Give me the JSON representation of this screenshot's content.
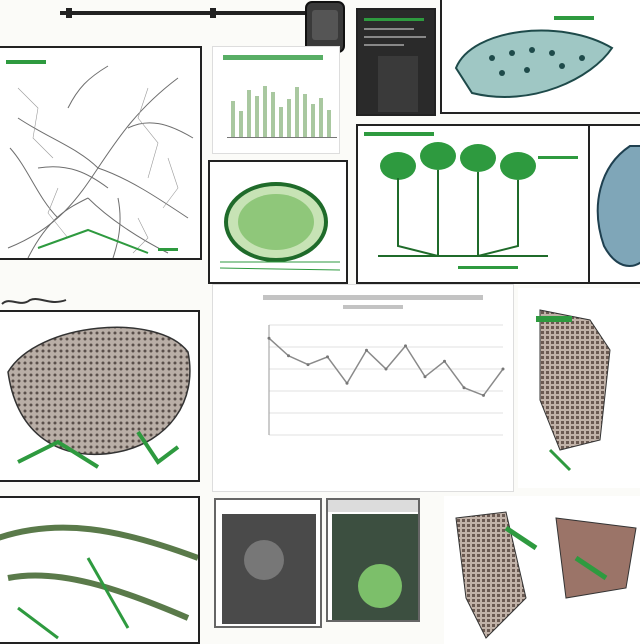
{
  "colors": {
    "accent_green": "#2e9a3f",
    "dark_green": "#1f6b2a",
    "line_gray": "#8a8a8a",
    "background": "#fbfbf8",
    "frame": "#222222"
  },
  "icons": [
    "camera-mount-icon"
  ],
  "chart_data": {
    "type": "line",
    "title": "",
    "xlabel": "",
    "ylabel": "",
    "values": [
      88,
      72,
      64,
      71,
      47,
      77,
      60,
      81,
      53,
      67,
      43,
      36,
      60
    ],
    "ylim": [
      0,
      100
    ],
    "grid": true
  },
  "bars_data": {
    "type": "bar",
    "values": [
      42,
      30,
      55,
      48,
      60,
      52,
      35,
      44,
      58,
      50,
      38,
      46,
      32
    ]
  }
}
